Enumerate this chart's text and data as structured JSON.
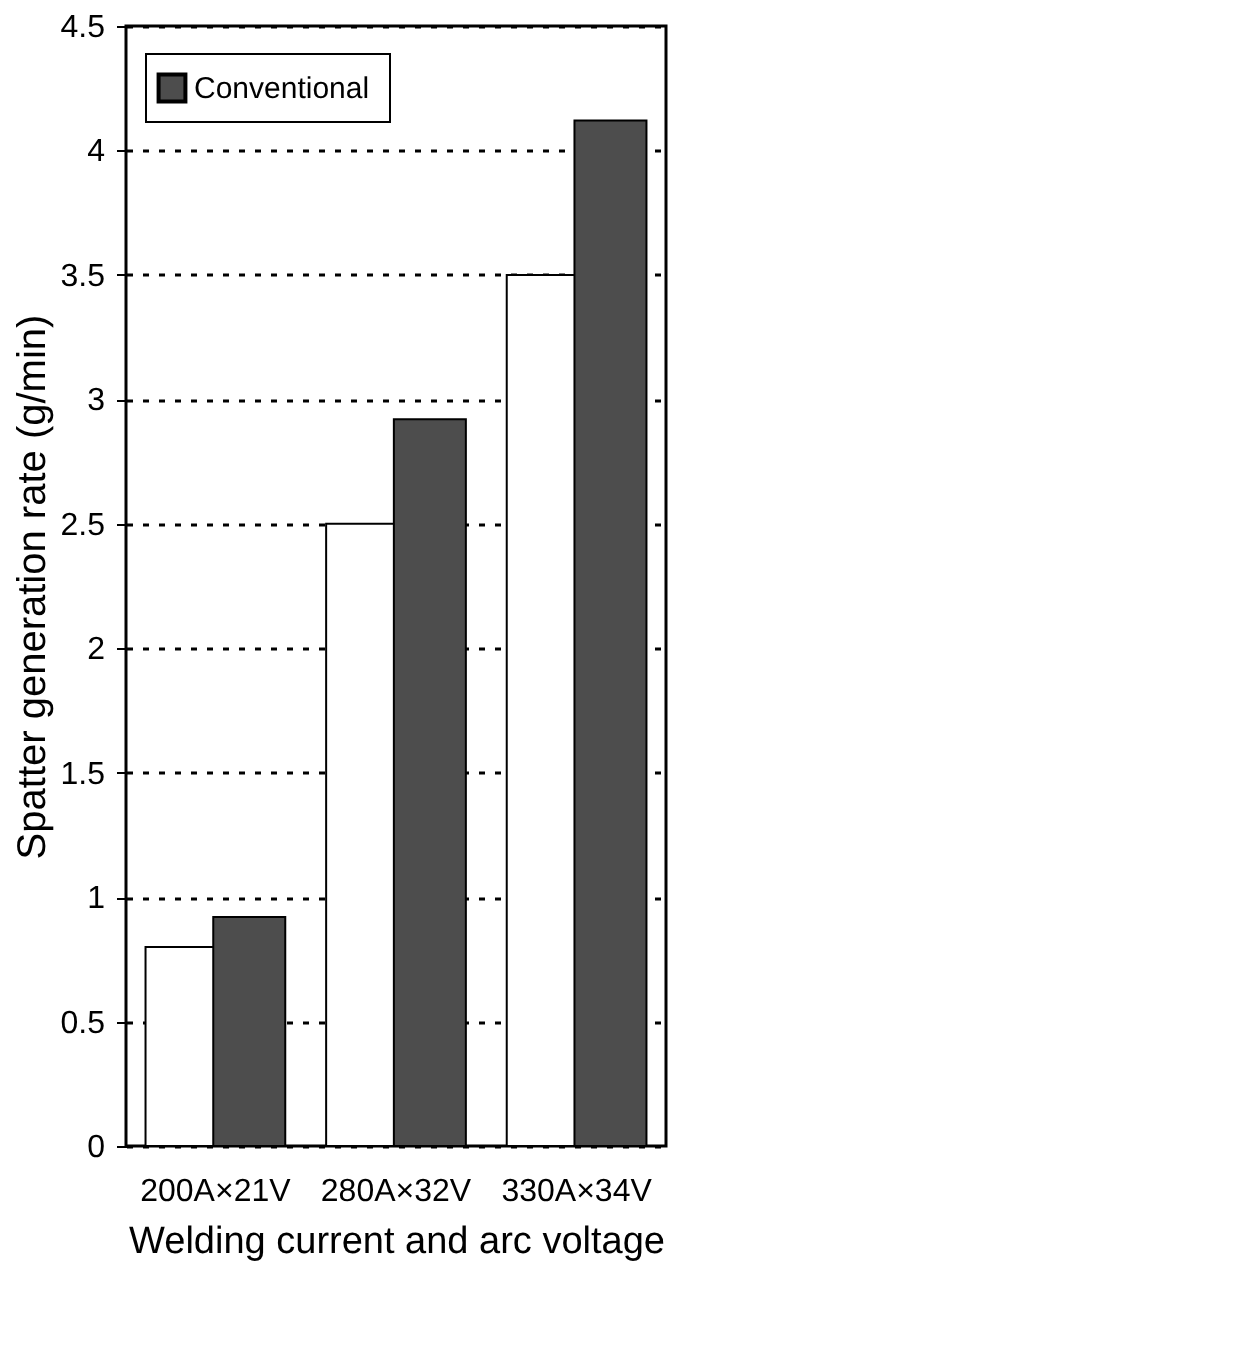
{
  "chart_data": {
    "type": "bar",
    "xlabel": "Welding current and arc voltage",
    "ylabel": "Spatter generation rate (g/min)",
    "categories": [
      "200A×21V",
      "280A×32V",
      "330A×34V"
    ],
    "series": [
      {
        "color": "#ffffff",
        "values": [
          0.8,
          2.5,
          3.5
        ]
      },
      {
        "name": "Conventional",
        "color": "#4d4d4d",
        "values": [
          0.92,
          2.92,
          4.12
        ]
      }
    ],
    "ylim": [
      0,
      4.5
    ],
    "yticks": [
      0,
      0.5,
      1,
      1.5,
      2,
      2.5,
      3,
      3.5,
      4,
      4.5
    ],
    "grid": "y",
    "legend": "top left"
  }
}
